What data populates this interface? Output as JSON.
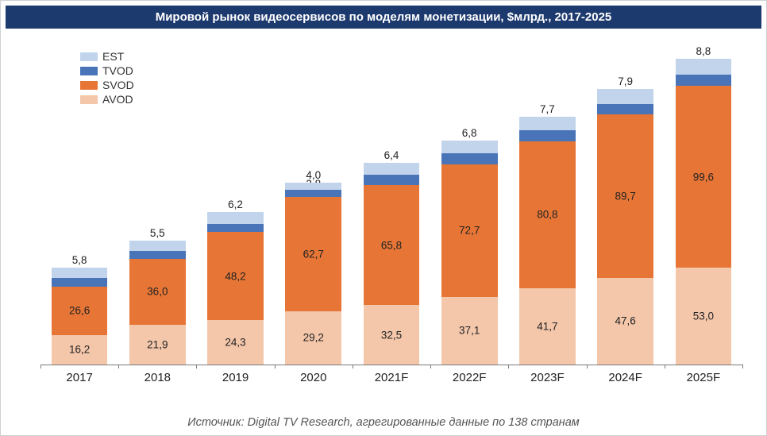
{
  "title": "Мировой рынок видеосервисов по моделям монетизации, $млрд., 2017-2025",
  "title_bg": "#1d3a6e",
  "title_color": "#ffffff",
  "title_fontsize": 15,
  "source": "Источник: Digital TV Research, агрегированные данные по 138 странам",
  "chart": {
    "type": "stacked-bar",
    "bar_width_pct": 72,
    "label_fontsize": 13.5,
    "xaxis_fontsize": 15,
    "axis_color": "#7a7a7a",
    "background_color": "#ffffff",
    "y_max": 175,
    "legend": {
      "position": "top-left",
      "items": [
        {
          "key": "EST",
          "color": "#c2d4ec"
        },
        {
          "key": "TVOD",
          "color": "#4a74b8"
        },
        {
          "key": "SVOD",
          "color": "#e77636"
        },
        {
          "key": "AVOD",
          "color": "#f4c7ab"
        }
      ]
    },
    "categories": [
      "2017",
      "2018",
      "2019",
      "2020",
      "2021F",
      "2022F",
      "2023F",
      "2024F",
      "2025F"
    ],
    "series_order_bottom_up": [
      "AVOD",
      "SVOD",
      "TVOD",
      "EST"
    ],
    "colors": {
      "AVOD": "#f4c7ab",
      "SVOD": "#e77636",
      "TVOD": "#4a74b8",
      "EST": "#c2d4ec"
    },
    "data": {
      "AVOD": [
        16.2,
        21.9,
        24.3,
        29.2,
        32.5,
        37.1,
        41.7,
        47.6,
        53.0
      ],
      "SVOD": [
        26.6,
        36.0,
        48.2,
        62.7,
        65.8,
        72.7,
        80.8,
        89.7,
        99.6
      ],
      "TVOD": [
        4.6,
        4.4,
        4.7,
        3.8,
        5.9,
        6.0,
        5.8,
        5.7,
        6.1
      ],
      "EST": [
        5.8,
        5.5,
        6.2,
        4.0,
        6.4,
        6.8,
        7.7,
        7.9,
        8.8
      ]
    },
    "labels": {
      "AVOD": [
        "16,2",
        "21,9",
        "24,3",
        "29,2",
        "32,5",
        "37,1",
        "41,7",
        "47,6",
        "53,0"
      ],
      "SVOD": [
        "26,6",
        "36,0",
        "48,2",
        "62,7",
        "65,8",
        "72,7",
        "80,8",
        "89,7",
        "99,6"
      ],
      "TVOD": [
        "4,6",
        "4,4",
        "4,7",
        "3,8",
        "5,9",
        "6,0",
        "5,8",
        "5,7",
        "6,1"
      ],
      "EST": [
        "5,8",
        "5,5",
        "6,2",
        "4,0",
        "6,4",
        "6,8",
        "7,7",
        "7,9",
        "8,8"
      ]
    }
  }
}
